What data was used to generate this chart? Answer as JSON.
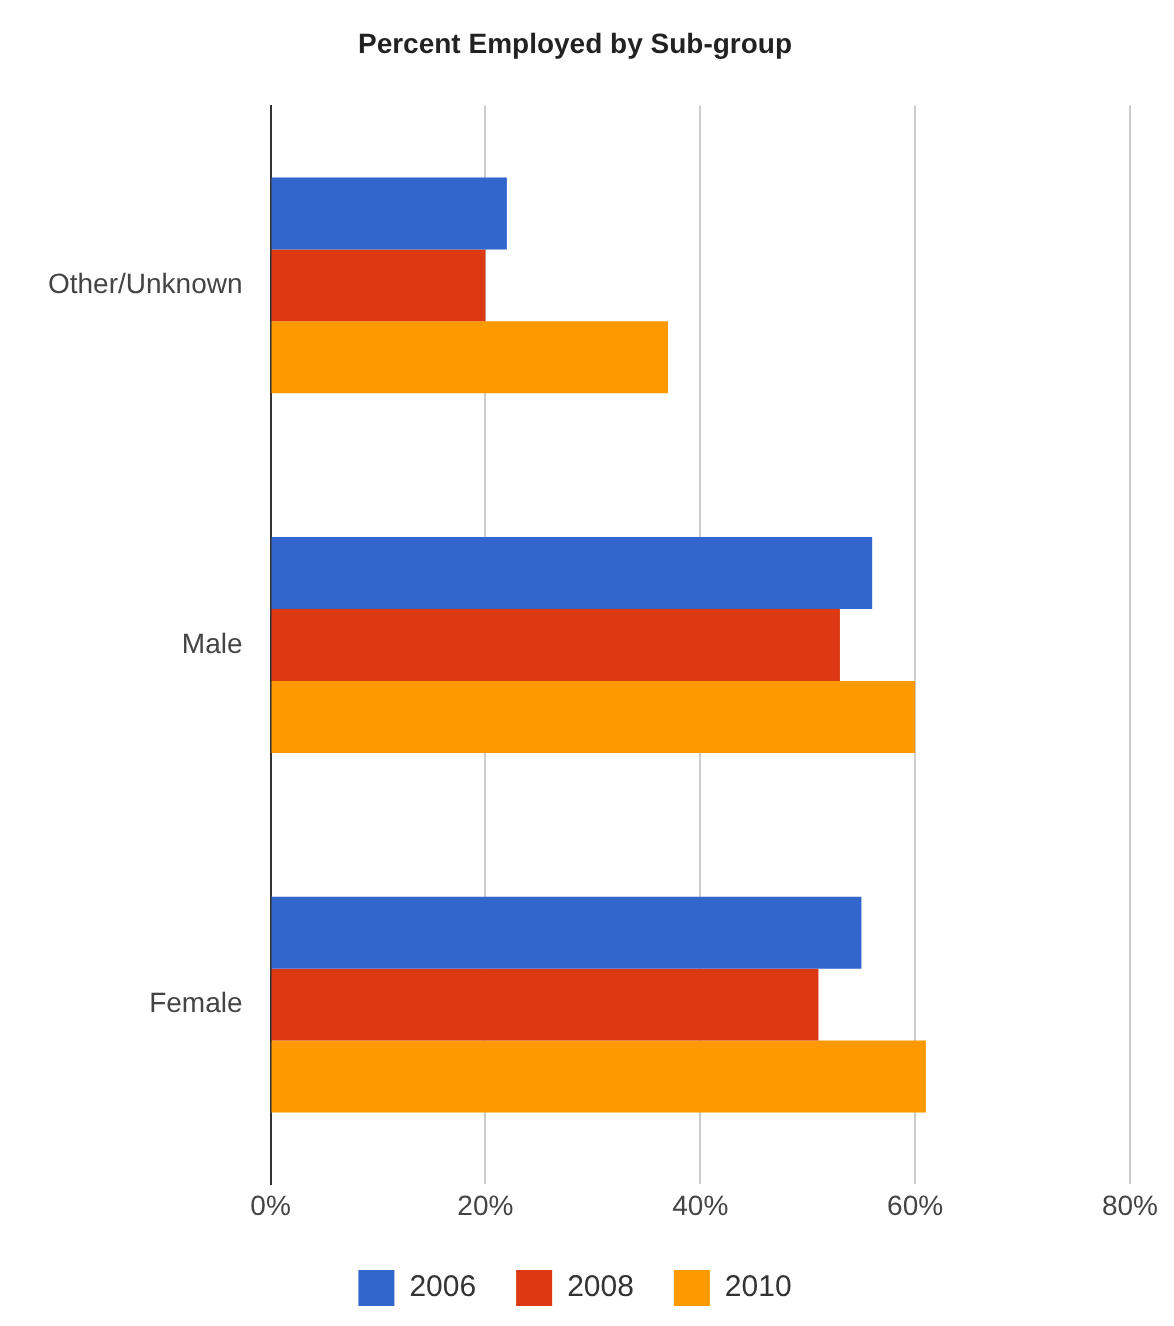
{
  "chart_data": {
    "type": "bar",
    "orientation": "horizontal",
    "title": "Percent Employed by Sub-group",
    "categories": [
      "Other/Unknown",
      "Male",
      "Female"
    ],
    "series": [
      {
        "name": "2006",
        "color": "#3366cc",
        "values": [
          22,
          56,
          55
        ]
      },
      {
        "name": "2008",
        "color": "#dc3912",
        "values": [
          20,
          53,
          51
        ]
      },
      {
        "name": "2010",
        "color": "#ff9900",
        "values": [
          37,
          60,
          61
        ]
      }
    ],
    "xlim": [
      0,
      80
    ],
    "xticks": [
      {
        "value": 0,
        "label": "0%"
      },
      {
        "value": 20,
        "label": "20%"
      },
      {
        "value": 40,
        "label": "40%"
      },
      {
        "value": 60,
        "label": "60%"
      },
      {
        "value": 80,
        "label": "80%"
      }
    ],
    "grid": "x",
    "legend": "bottom"
  }
}
